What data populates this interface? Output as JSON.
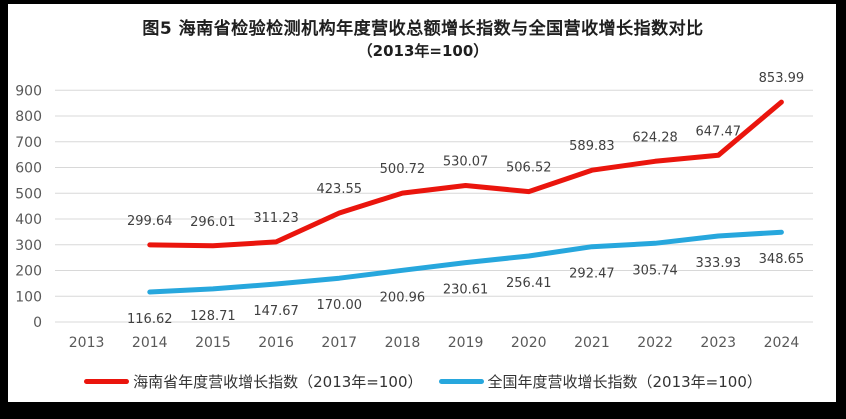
{
  "title": {
    "line1": "图5  海南省检验检测机构年度营收总额增长指数与全国营收增长指数对比",
    "line2": "（2013年=100）"
  },
  "chart_data": {
    "type": "line",
    "title": "图5 海南省检验检测机构年度营收总额增长指数与全国营收增长指数对比（2013年=100）",
    "xlabel": "",
    "ylabel": "",
    "categories": [
      "2013",
      "2014",
      "2015",
      "2016",
      "2017",
      "2018",
      "2019",
      "2020",
      "2021",
      "2022",
      "2023",
      "2024"
    ],
    "ylim": [
      0,
      900
    ],
    "ytick_step": 100,
    "yticks": [
      0,
      100,
      200,
      300,
      400,
      500,
      600,
      700,
      800,
      900
    ],
    "grid": true,
    "legend_position": "bottom",
    "series": [
      {
        "name": "海南省年度营收增长指数（2013年=100）",
        "color": "#ea150d",
        "start_category_index": 1,
        "values": [
          299.64,
          296.01,
          311.23,
          423.55,
          500.72,
          530.07,
          506.52,
          589.83,
          624.28,
          647.47,
          853.99
        ],
        "labels": [
          "299.64",
          "296.01",
          "311.23",
          "423.55",
          "500.72",
          "530.07",
          "506.52",
          "589.83",
          "624.28",
          "647.47",
          "853.99"
        ],
        "label_position": "above"
      },
      {
        "name": "全国年度营收增长指数（2013年=100）",
        "color": "#27a7dd",
        "start_category_index": 1,
        "values": [
          116.62,
          128.71,
          147.67,
          170.0,
          200.96,
          230.61,
          256.41,
          292.47,
          305.74,
          333.93,
          348.65
        ],
        "labels": [
          "116.62",
          "128.71",
          "147.67",
          "170.00",
          "200.96",
          "230.61",
          "256.41",
          "292.47",
          "305.74",
          "333.93",
          "348.65"
        ],
        "label_position": "below"
      }
    ]
  },
  "colors": {
    "frame_border": "#000000",
    "background": "#ffffff",
    "gridline": "#d8d8d8",
    "axis_label": "#595959",
    "data_label": "#404040",
    "title_text": "#1f1f1f"
  }
}
